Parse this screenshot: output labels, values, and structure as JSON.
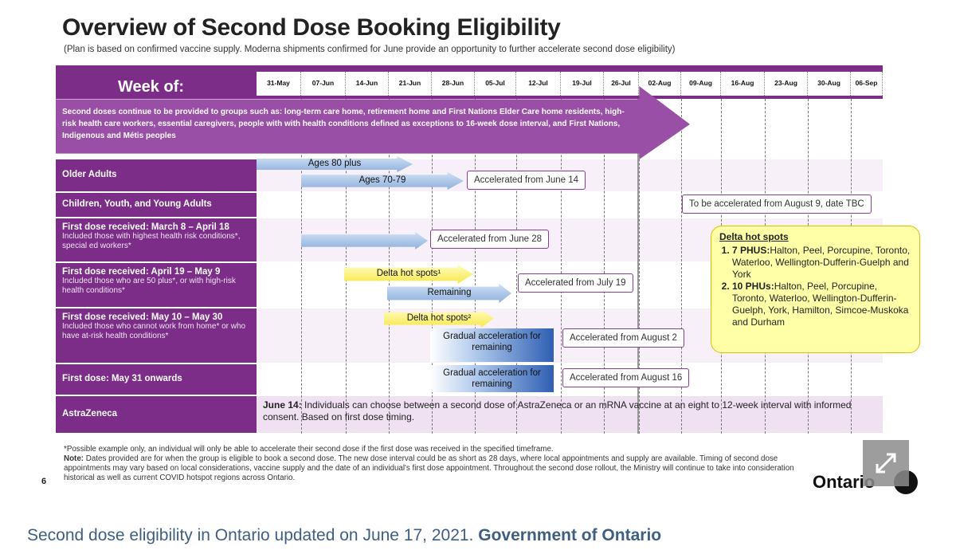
{
  "title": "Overview of Second Dose Booking Eligibility",
  "subtitle": "(Plan is based on confirmed vaccine supply. Moderna shipments confirmed for June provide an opportunity to further accelerate second dose eligibility)",
  "week_label": "Week of:",
  "weeks": [
    "31-May",
    "07-Jun",
    "14-Jun",
    "21-Jun",
    "28-Jun",
    "05-Jul",
    "12-Jul",
    "19-Jul",
    "26-Jul",
    "02-Aug",
    "09-Aug",
    "16-Aug",
    "23-Aug",
    "30-Aug",
    "06-Sep"
  ],
  "banner": "Second doses continue to be provided to groups such as: long-term care home, retirement home and First Nations Elder Care home residents, high-risk health care workers, essential caregivers, people with with health conditions defined as exceptions to 16-week dose interval, and First Nations, Indigenous and Métis peoples",
  "rows": [
    {
      "label": "Older Adults"
    },
    {
      "label": "Children, Youth, and Young Adults"
    },
    {
      "label": "First dose received: March 8 – April 18",
      "detail": "Included those with highest health risk conditions*, special ed workers*"
    },
    {
      "label": "First dose received: April 19 – May 9",
      "detail": "Included those who are 50 plus*, or with high-risk health conditions*"
    },
    {
      "label": "First dose received: May 10 – May 30",
      "detail": "Included those who cannot work from home* or who have at-risk health conditions*"
    },
    {
      "label": "First dose: May 31 onwards"
    },
    {
      "label": "AstraZeneca"
    }
  ],
  "bars": [
    "Ages 80 plus",
    "Ages 70-79",
    "",
    "Delta hot spots¹",
    "Remaining",
    "Delta hot spots²",
    "Gradual acceleration for remaining",
    "Gradual acceleration for remaining"
  ],
  "callouts": [
    "Accelerated from June 14",
    "To be accelerated from August 9, date TBC",
    "Accelerated from June 28",
    "Accelerated from July 19",
    "Accelerated from August 2",
    "Accelerated from August 16"
  ],
  "delta": {
    "title": "Delta hot spots",
    "items": [
      {
        "head": "7 PHUS:",
        "text": "Halton, Peel, Porcupine, Toronto, Waterloo, Wellington-Dufferin-Guelph and York"
      },
      {
        "head": "10 PHUs:",
        "text": "Halton, Peel, Porcupine, Toronto, Waterloo, Wellington-Dufferin-Guelph, York, Hamilton, Simcoe-Muskoka and Durham"
      }
    ]
  },
  "astrazeneca": {
    "date": "June 14:",
    "text": "Individuals can choose between a second dose of AstraZeneca or an mRNA vaccine at an eight to 12-week interval with informed consent. Based on first dose timing."
  },
  "footnotes": {
    "asterisk": "*Possible example only, an individual will only be able to accelerate their second dose if the first dose was received in the specified timeframe.",
    "note_head": "Note:",
    "note": "Dates provided are for when the group is eligible to book a second dose. The new dose interval could be as short as 28 days, where local appointments and supply are available. Timing of second dose appointments may vary based on local considerations, vaccine supply and the date of an individual's first dose appointment. Throughout the second dose rollout, the Ministry will continue to take into consideration historical as well as current COVID hotspot regions across Ontario."
  },
  "page_number": "6",
  "logo": "Ontario",
  "caption": {
    "text": "Second dose eligibility in Ontario updated on June 17, 2021.",
    "credit": "Government of Ontario"
  }
}
